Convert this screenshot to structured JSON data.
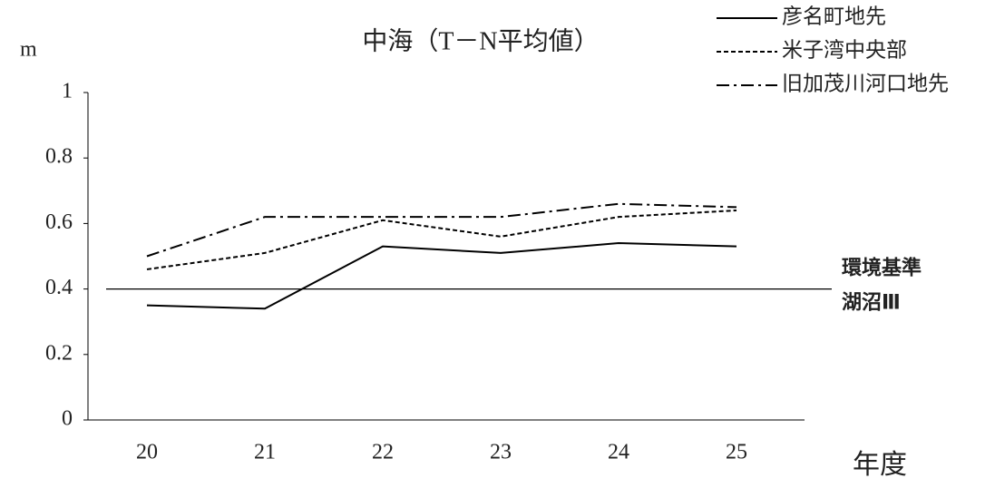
{
  "chart_data": {
    "type": "line",
    "title": "中海（T－N平均値）",
    "y_label": "m",
    "x_label": "年度",
    "categories": [
      "20",
      "21",
      "22",
      "23",
      "24",
      "25"
    ],
    "series": [
      {
        "name": "彦名町地先",
        "color": "#000000",
        "dash": "solid",
        "values": [
          0.35,
          0.34,
          0.53,
          0.51,
          0.54,
          0.53
        ]
      },
      {
        "name": "米子湾中央部",
        "color": "#000000",
        "dash": "dashed",
        "values": [
          0.46,
          0.51,
          0.61,
          0.56,
          0.62,
          0.64
        ]
      },
      {
        "name": "旧加茂川河口地先",
        "color": "#000000",
        "dash": "dashdot",
        "values": [
          0.5,
          0.62,
          0.62,
          0.62,
          0.66,
          0.65
        ]
      }
    ],
    "ylim": [
      0,
      1
    ],
    "yticks": [
      0,
      0.2,
      0.4,
      0.6,
      0.8,
      1
    ],
    "grid": false,
    "legend": "upper right",
    "reference": {
      "value": 0.4,
      "labels": [
        "環境基準",
        "湖沼Ⅲ"
      ]
    }
  }
}
